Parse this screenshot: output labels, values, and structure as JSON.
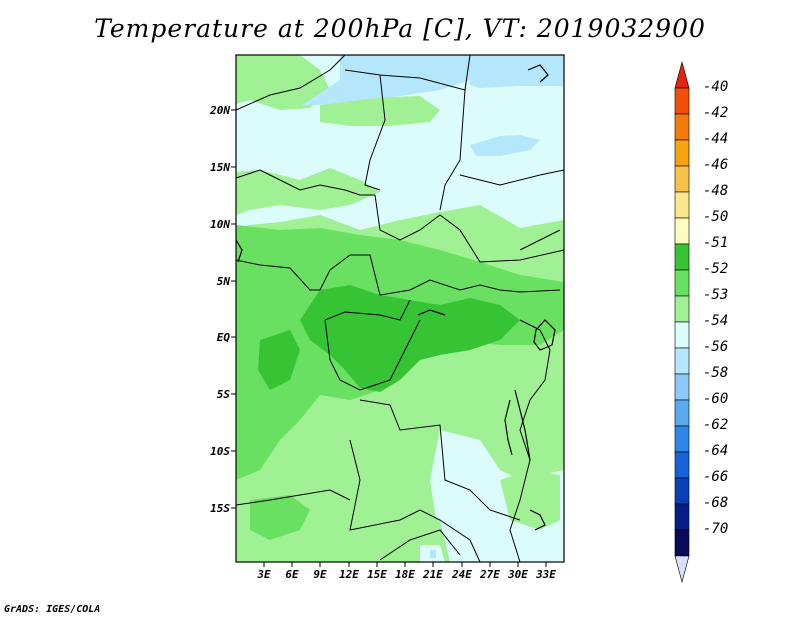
{
  "title": "Temperature at 200hPa [C], VT: 2019032900",
  "credit": "GrADS: IGES/COLA",
  "lat_ticks": [
    "20N",
    "15N",
    "10N",
    "5N",
    "EQ",
    "5S",
    "10S",
    "15S"
  ],
  "lon_ticks": [
    "3E",
    "6E",
    "9E",
    "12E",
    "15E",
    "18E",
    "21E",
    "24E",
    "27E",
    "30E",
    "33E"
  ],
  "colorbar": {
    "labels": [
      "-40",
      "-42",
      "-44",
      "-46",
      "-48",
      "-50",
      "-51",
      "-52",
      "-53",
      "-54",
      "-56",
      "-58",
      "-60",
      "-62",
      "-64",
      "-66",
      "-68",
      "-70"
    ],
    "colors": [
      "#e8200e",
      "#f24e0c",
      "#f47a0c",
      "#f5a30f",
      "#f8c248",
      "#fbe68a",
      "#fffcc0",
      "#36c334",
      "#6ae062",
      "#a0f094",
      "#dcfcfc",
      "#b4e6fc",
      "#8cc8f8",
      "#5aaaf0",
      "#2e86e8",
      "#1862d8",
      "#0c40b8",
      "#061e8c",
      "#0a0a5a",
      "#dcdcfc"
    ]
  },
  "map_colors": {
    "t_minus_52": "#36c334",
    "t_minus_53": "#6ae062",
    "t_minus_54": "#a0f094",
    "t_minus_56": "#dcfcfc",
    "t_minus_58": "#b4e6fc",
    "t_minus_60": "#8cc8f8"
  }
}
